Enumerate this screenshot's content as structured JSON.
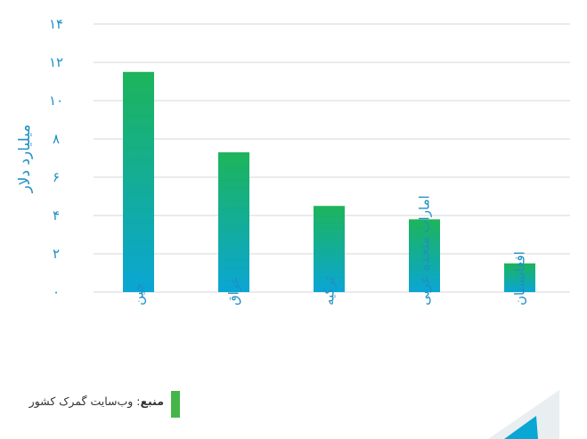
{
  "chart_data": {
    "type": "bar",
    "categories": [
      "چین",
      "عراق",
      "ترکیه",
      "امارات متحده عربی",
      "افغانستان"
    ],
    "values": [
      11.5,
      7.3,
      4.5,
      3.8,
      1.5
    ],
    "ylabel": "میلیارد دلار",
    "ylim": [
      0,
      14
    ],
    "yticks": [
      "۰",
      "۲",
      "۴",
      "۶",
      "۸",
      "۱۰",
      "۱۲",
      "۱۴"
    ],
    "grid": true,
    "colors": {
      "bar_top": "#1db45a",
      "bar_bottom": "#0aa6d4",
      "text": "#1f8fc4"
    }
  },
  "source": {
    "label": "منبع",
    "text": "وب‌سایت گمرک کشور",
    "accent": "#44b549"
  }
}
